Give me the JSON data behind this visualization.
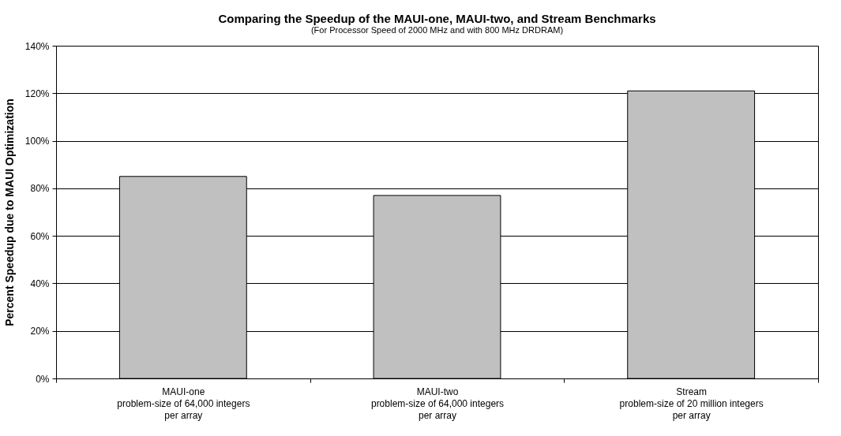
{
  "chart_data": {
    "type": "bar",
    "title": "Comparing the Speedup of the MAUI-one, MAUI-two, and Stream Benchmarks",
    "subtitle": "(For Processor Speed of 2000 MHz and with 800 MHz DRDRAM)",
    "ylabel": "Percent Speedup due to MAUI Optimization",
    "categories": [
      "MAUI-one\nproblem-size of 64,000 integers\nper array",
      "MAUI-two\nproblem-size of 64,000 integers\nper array",
      "Stream\nproblem-size of 20 million integers\nper array"
    ],
    "values": [
      85,
      77,
      121
    ],
    "color": "#c0c0c0",
    "ylim": [
      0,
      140
    ],
    "yticks": [
      {
        "value": 0,
        "label": "0%"
      },
      {
        "value": 20,
        "label": "20%"
      },
      {
        "value": 40,
        "label": "40%"
      },
      {
        "value": 60,
        "label": "60%"
      },
      {
        "value": 80,
        "label": "80%"
      },
      {
        "value": 100,
        "label": "100%"
      },
      {
        "value": 120,
        "label": "120%"
      },
      {
        "value": 140,
        "label": "140%"
      }
    ],
    "grid": "y"
  }
}
